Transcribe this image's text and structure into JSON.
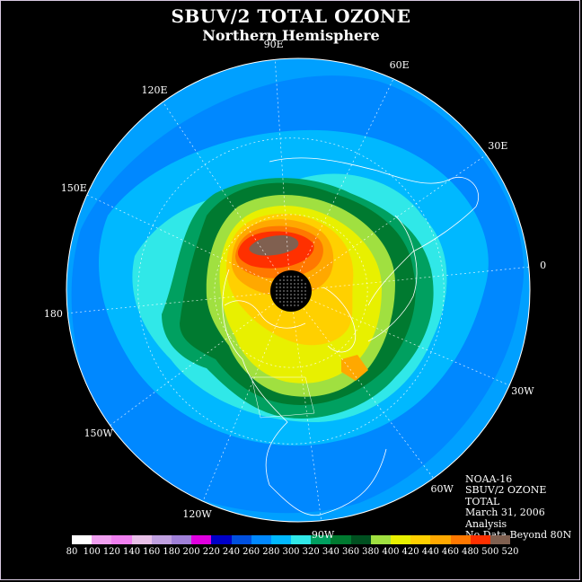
{
  "title": "SBUV/2 TOTAL OZONE",
  "subtitle": "Northern Hemisphere",
  "longitude_labels": [
    {
      "text": "90E",
      "deg": 90
    },
    {
      "text": "60E",
      "deg": 60
    },
    {
      "text": "30E",
      "deg": 30
    },
    {
      "text": "0",
      "deg": 0
    },
    {
      "text": "30W",
      "deg": -30
    },
    {
      "text": "60W",
      "deg": -60
    },
    {
      "text": "90W",
      "deg": -90
    },
    {
      "text": "120W",
      "deg": -120
    },
    {
      "text": "150W",
      "deg": -150
    },
    {
      "text": "180",
      "deg": 180
    },
    {
      "text": "150E",
      "deg": 150
    },
    {
      "text": "120E",
      "deg": 120
    }
  ],
  "info": {
    "satellite": "NOAA-16",
    "product": "SBUV/2 OZONE",
    "field": "TOTAL",
    "date": "March 31, 2006",
    "type": "Analysis",
    "note": "No Data Beyond 80N"
  },
  "legend": {
    "ticks": [
      "80",
      "100",
      "120",
      "140",
      "160",
      "180",
      "200",
      "220",
      "240",
      "260",
      "280",
      "300",
      "320",
      "340",
      "360",
      "380",
      "400",
      "420",
      "440",
      "460",
      "480",
      "500",
      "520"
    ],
    "colors": [
      "#ffffff",
      "#f0a0f0",
      "#f080f0",
      "#e8c0e8",
      "#c0a0e0",
      "#a080d8",
      "#e000e0",
      "#0000c8",
      "#0050e0",
      "#0088ff",
      "#00b8ff",
      "#30e8e8",
      "#00a060",
      "#007a30",
      "#005020",
      "#a0e040",
      "#e8f000",
      "#ffd000",
      "#ffa800",
      "#ff7800",
      "#ff3000",
      "#806050"
    ]
  },
  "colors": {
    "background": "#000000",
    "ocean_low": "#00a0ff",
    "cap": "#000000"
  }
}
